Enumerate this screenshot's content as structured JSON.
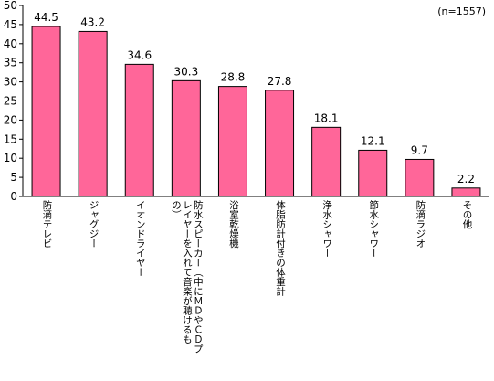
{
  "note": "(n=1557)",
  "chart_data": {
    "type": "bar",
    "categories": [
      "防滴テレビ",
      "ジャグジー",
      "イオンドライヤー",
      "防水スピーカー（中にＭＤやＣＤプレイヤーを入れて音楽が聴けるもの）",
      "浴室乾燥機",
      "体脂肪計付きの体重計",
      "浄水シャワー",
      "節水シャワー",
      "防滴ラジオ",
      "その他"
    ],
    "values": [
      44.5,
      43.2,
      34.6,
      30.3,
      28.8,
      27.8,
      18.1,
      12.1,
      9.7,
      2.2
    ],
    "value_labels": [
      "44.5",
      "43.2",
      "34.6",
      "30.3",
      "28.8",
      "27.8",
      "18.1",
      "12.1",
      "9.7",
      "2.2"
    ],
    "ylim": [
      0,
      50
    ],
    "yticks": [
      0,
      5,
      10,
      15,
      20,
      25,
      30,
      35,
      40,
      45,
      50
    ],
    "bar_color": "#ff6699",
    "bar_edge_color": "#000000",
    "grid": false,
    "legend": "none"
  }
}
